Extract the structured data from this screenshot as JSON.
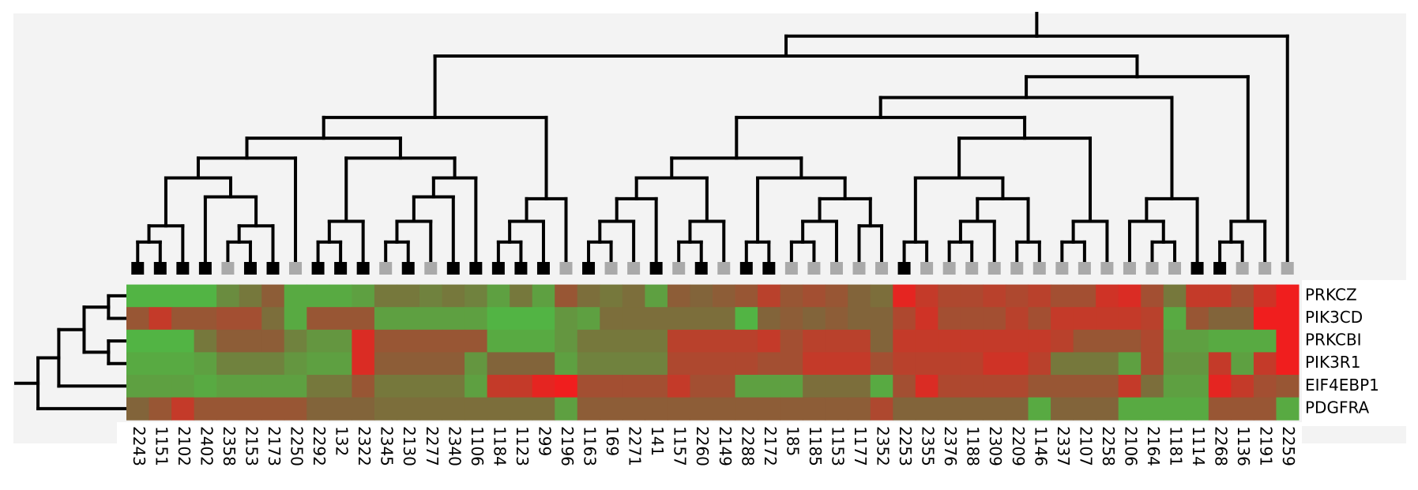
{
  "chart_data": {
    "type": "heatmap",
    "rows": [
      "PRKCZ",
      "PIK3CD",
      "PRKCBI",
      "PIK3R1",
      "EIF4EBP1",
      "PDGFRA"
    ],
    "columns": [
      "2243",
      "1151",
      "2102",
      "2402",
      "2358",
      "2153",
      "2173",
      "2250",
      "2292",
      "132",
      "2322",
      "2345",
      "2130",
      "2277",
      "2340",
      "1106",
      "1184",
      "1123",
      "299",
      "2196",
      "1163",
      "169",
      "2271",
      "141",
      "1157",
      "2260",
      "2149",
      "2288",
      "2172",
      "185",
      "1185",
      "1153",
      "1177",
      "2352",
      "2253",
      "2355",
      "2376",
      "1188",
      "2309",
      "2209",
      "1146",
      "2337",
      "2107",
      "2258",
      "2106",
      "2164",
      "1181",
      "1114",
      "2268",
      "1136",
      "2191",
      "2259"
    ],
    "values": [
      [
        -0.8,
        -0.8,
        -0.8,
        -0.8,
        -0.4,
        -0.2,
        0.1,
        -0.7,
        -0.7,
        -0.7,
        -0.6,
        -0.2,
        -0.2,
        -0.3,
        -0.2,
        -0.3,
        -0.6,
        -0.2,
        -0.6,
        0.2,
        -0.1,
        -0.2,
        -0.1,
        -0.6,
        0.1,
        0,
        0.1,
        0.2,
        0.5,
        0.2,
        0.3,
        0.2,
        0,
        -0.1,
        0.9,
        0.6,
        0.4,
        0.4,
        0.5,
        0.4,
        0.5,
        0.3,
        0.3,
        0.7,
        0.8,
        0.3,
        -0.2,
        0.6,
        0.6,
        0.3,
        0.7,
        1
      ],
      [
        0.2,
        0.6,
        0.2,
        0.2,
        0.3,
        0.3,
        -0.1,
        -0.7,
        0.2,
        0.2,
        0.2,
        -0.6,
        -0.6,
        -0.6,
        -0.6,
        -0.6,
        -0.8,
        -0.8,
        -0.8,
        -0.5,
        -0.6,
        -0.1,
        -0.1,
        -0.1,
        -0.1,
        -0.1,
        -0.1,
        -0.8,
        0,
        0.1,
        0,
        0.1,
        0,
        0,
        0.4,
        0.7,
        0.3,
        0.3,
        0.3,
        0.5,
        0.3,
        0.6,
        0.6,
        0.6,
        0.6,
        0.5,
        -0.7,
        0.2,
        0,
        0,
        1,
        1
      ],
      [
        -0.8,
        -0.8,
        -0.8,
        -0.2,
        0.1,
        0.1,
        0.1,
        -0.3,
        -0.5,
        -0.5,
        0.8,
        0.2,
        0.2,
        0.2,
        0.2,
        0.2,
        -0.7,
        -0.7,
        -0.7,
        -0.5,
        -0.2,
        -0.2,
        -0.2,
        -0.2,
        0.5,
        0.5,
        0.5,
        0.5,
        0.6,
        0.3,
        0.5,
        0.5,
        0.5,
        0,
        0.6,
        0.6,
        0.6,
        0.6,
        0.6,
        0.6,
        0.6,
        0.5,
        0.2,
        0.2,
        0.2,
        0.4,
        -0.6,
        -0.6,
        -0.7,
        -0.7,
        -0.7,
        1
      ],
      [
        -0.7,
        -0.7,
        -0.7,
        -0.6,
        -0.3,
        -0.3,
        -0.3,
        -0.5,
        -0.6,
        -0.6,
        0.8,
        0.1,
        0.1,
        0.1,
        0.1,
        -0.5,
        0,
        0,
        0,
        -0.6,
        -0.3,
        -0.3,
        -0.3,
        -0.3,
        0.4,
        0.4,
        0.4,
        0.4,
        0.3,
        0.3,
        0.6,
        0.6,
        0.6,
        0.3,
        0.5,
        0.5,
        0.5,
        0.5,
        0.7,
        0.7,
        0.5,
        -0.2,
        -0.2,
        -0.2,
        -0.6,
        0.4,
        -0.5,
        -0.5,
        0.6,
        -0.6,
        0.6,
        1
      ],
      [
        -0.6,
        -0.6,
        -0.6,
        -0.7,
        -0.6,
        -0.6,
        -0.6,
        -0.6,
        -0.2,
        -0.2,
        0.2,
        -0.2,
        -0.2,
        -0.2,
        -0.2,
        -0.6,
        0.6,
        0.6,
        0.9,
        1,
        0.3,
        0.3,
        0.3,
        0.3,
        0.6,
        0.3,
        0.3,
        -0.6,
        -0.6,
        -0.6,
        -0.1,
        -0.1,
        -0.1,
        -0.7,
        0.3,
        0.8,
        0.4,
        0.4,
        0.4,
        0.4,
        0.2,
        0.2,
        0.2,
        0.2,
        0.6,
        -0.1,
        -0.6,
        -0.6,
        0.9,
        0.6,
        0.3,
        0.2
      ],
      [
        0,
        0.2,
        0.6,
        0.2,
        0.2,
        0.2,
        0.2,
        0.2,
        0,
        0,
        0,
        -0.1,
        -0.1,
        -0.1,
        -0.1,
        -0.1,
        -0.1,
        -0.1,
        -0.1,
        -0.6,
        0.1,
        0.1,
        0.1,
        0.1,
        0.1,
        0.1,
        0.1,
        0.1,
        0.1,
        0.1,
        0.1,
        0.1,
        0.1,
        0.4,
        0,
        0,
        0,
        0,
        0,
        0,
        -0.7,
        0,
        0,
        0,
        -0.7,
        -0.7,
        -0.7,
        -0.7,
        0.2,
        0.2,
        0.2,
        -0.7
      ]
    ],
    "zlim": [
      -1,
      1
    ],
    "colorscale": [
      "#46c846",
      "#82643a",
      "#f01e1e"
    ],
    "marker_colors": [
      "#000000",
      "#000000",
      "#000000",
      "#000000",
      "#aaaaaa",
      "#000000",
      "#000000",
      "#aaaaaa",
      "#000000",
      "#000000",
      "#000000",
      "#aaaaaa",
      "#000000",
      "#aaaaaa",
      "#000000",
      "#000000",
      "#000000",
      "#000000",
      "#000000",
      "#aaaaaa",
      "#000000",
      "#aaaaaa",
      "#aaaaaa",
      "#000000",
      "#aaaaaa",
      "#000000",
      "#aaaaaa",
      "#000000",
      "#000000",
      "#aaaaaa",
      "#aaaaaa",
      "#aaaaaa",
      "#aaaaaa",
      "#aaaaaa",
      "#000000",
      "#aaaaaa",
      "#aaaaaa",
      "#aaaaaa",
      "#aaaaaa",
      "#aaaaaa",
      "#aaaaaa",
      "#aaaaaa",
      "#aaaaaa",
      "#aaaaaa",
      "#aaaaaa",
      "#aaaaaa",
      "#aaaaaa",
      "#000000",
      "#000000",
      "#aaaaaa",
      "#aaaaaa",
      "#aaaaaa"
    ]
  }
}
